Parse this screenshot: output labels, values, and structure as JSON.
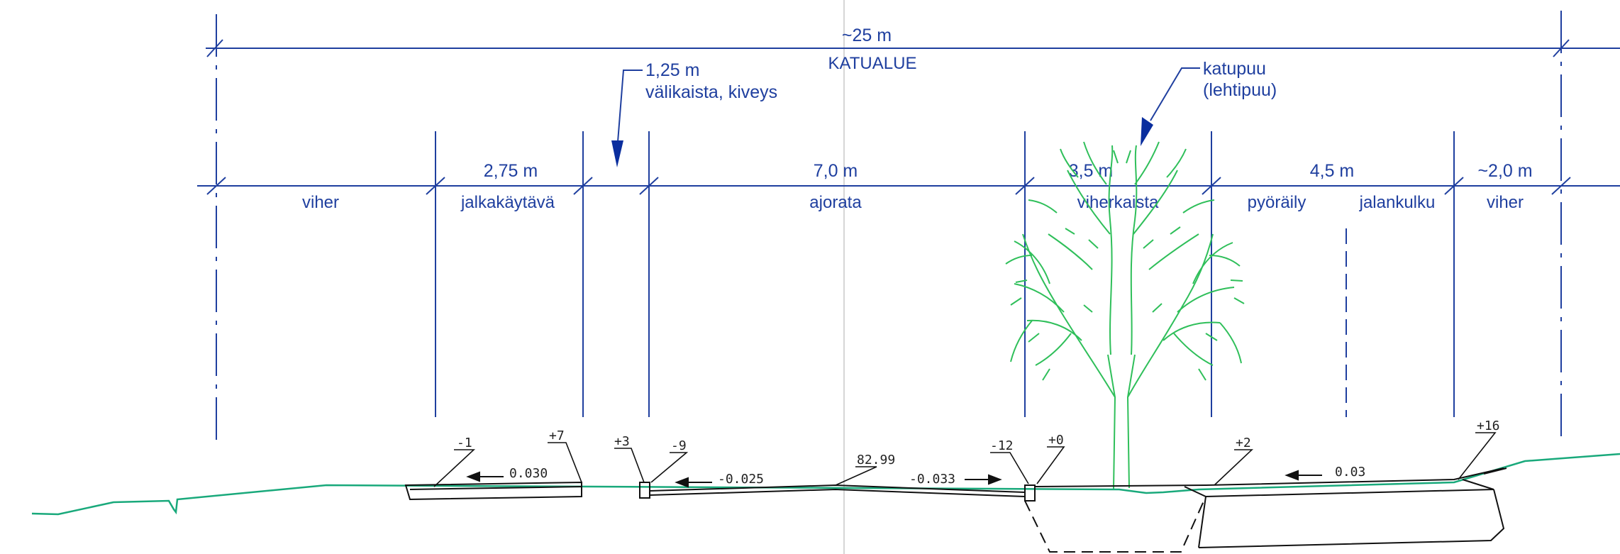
{
  "overall": {
    "width_label": "~25 m",
    "area_label": "KATUALUE"
  },
  "callouts": {
    "median": {
      "width": "1,25 m",
      "material": "välikaista, kiveys"
    },
    "tree": {
      "name": "katupuu",
      "type": "(lehtipuu)"
    }
  },
  "widths": {
    "sidewalk": "2,75 m",
    "roadway": "7,0 m",
    "green_strip": "3,5 m",
    "bike_walk": "4,5 m",
    "green_right": "~2,0 m"
  },
  "zones": {
    "green_left": "viher",
    "sidewalk": "jalkakäytävä",
    "roadway": "ajorata",
    "green_strip": "viherkaista",
    "cycling": "pyöräily",
    "walking": "jalankulku",
    "green_right": "viher"
  },
  "levels": {
    "a": "-1",
    "b": "+7",
    "c": "+3",
    "d": "-9",
    "e": "-12",
    "f": "+0",
    "g": "+2",
    "h": "+16",
    "crown": "82.99"
  },
  "slopes": {
    "sidewalk": "0.030",
    "road_left": "-0.025",
    "road_right": "-0.033",
    "bikeway": "0.03"
  },
  "colors": {
    "dimension_lines": "#1f3f9f",
    "ground_line": "#19a97b",
    "tree": "#2fbf5a",
    "structure": "#111111"
  }
}
